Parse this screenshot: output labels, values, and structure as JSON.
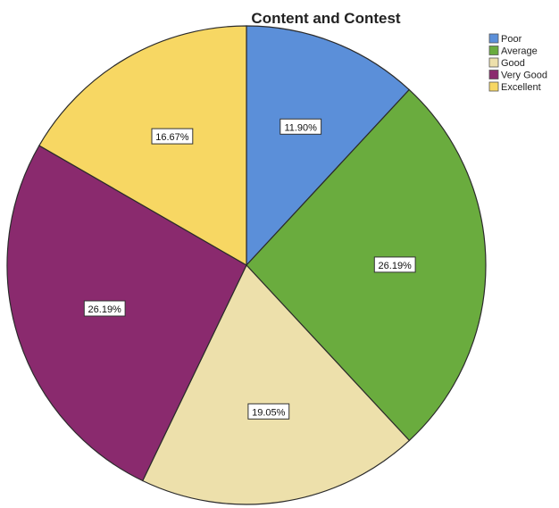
{
  "chart_data": {
    "type": "pie",
    "title": "Content and Contest",
    "categories": [
      "Poor",
      "Average",
      "Good",
      "Very Good",
      "Excellent"
    ],
    "values": [
      11.9,
      26.19,
      19.05,
      26.19,
      16.67
    ],
    "labels": [
      "11.90%",
      "26.19%",
      "19.05%",
      "26.19%",
      "16.67%"
    ],
    "colors": [
      "#5b8fd9",
      "#6aac3e",
      "#ede0ab",
      "#8a2a6e",
      "#f7d763"
    ],
    "start_angle": "12 o'clock",
    "direction": "clockwise",
    "legend_position": "top-right"
  }
}
